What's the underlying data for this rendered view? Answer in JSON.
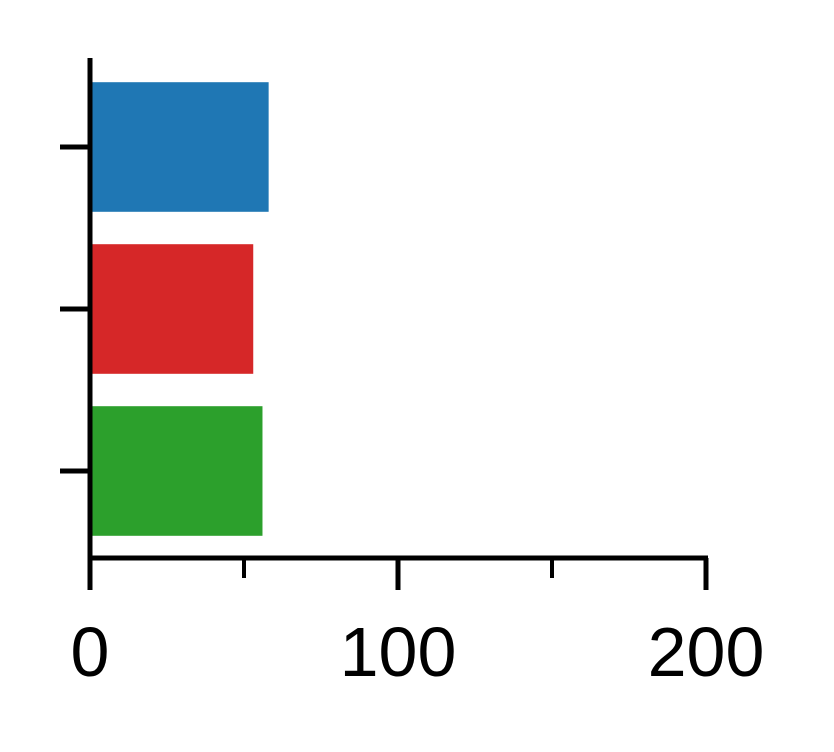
{
  "chart_data": {
    "type": "bar",
    "orientation": "horizontal",
    "categories": [
      "",
      "",
      ""
    ],
    "values": [
      58,
      53,
      56
    ],
    "colors": [
      "#1f77b4",
      "#d62728",
      "#2ca02c"
    ],
    "xlim": [
      0,
      200
    ],
    "x_major_ticks": [
      0,
      100,
      200
    ],
    "x_tick_labels": [
      "0",
      "100",
      "200"
    ],
    "x_minor_ticks": [
      50,
      150
    ],
    "title": "",
    "xlabel": "",
    "ylabel": "",
    "grid": false,
    "legend": "none"
  }
}
